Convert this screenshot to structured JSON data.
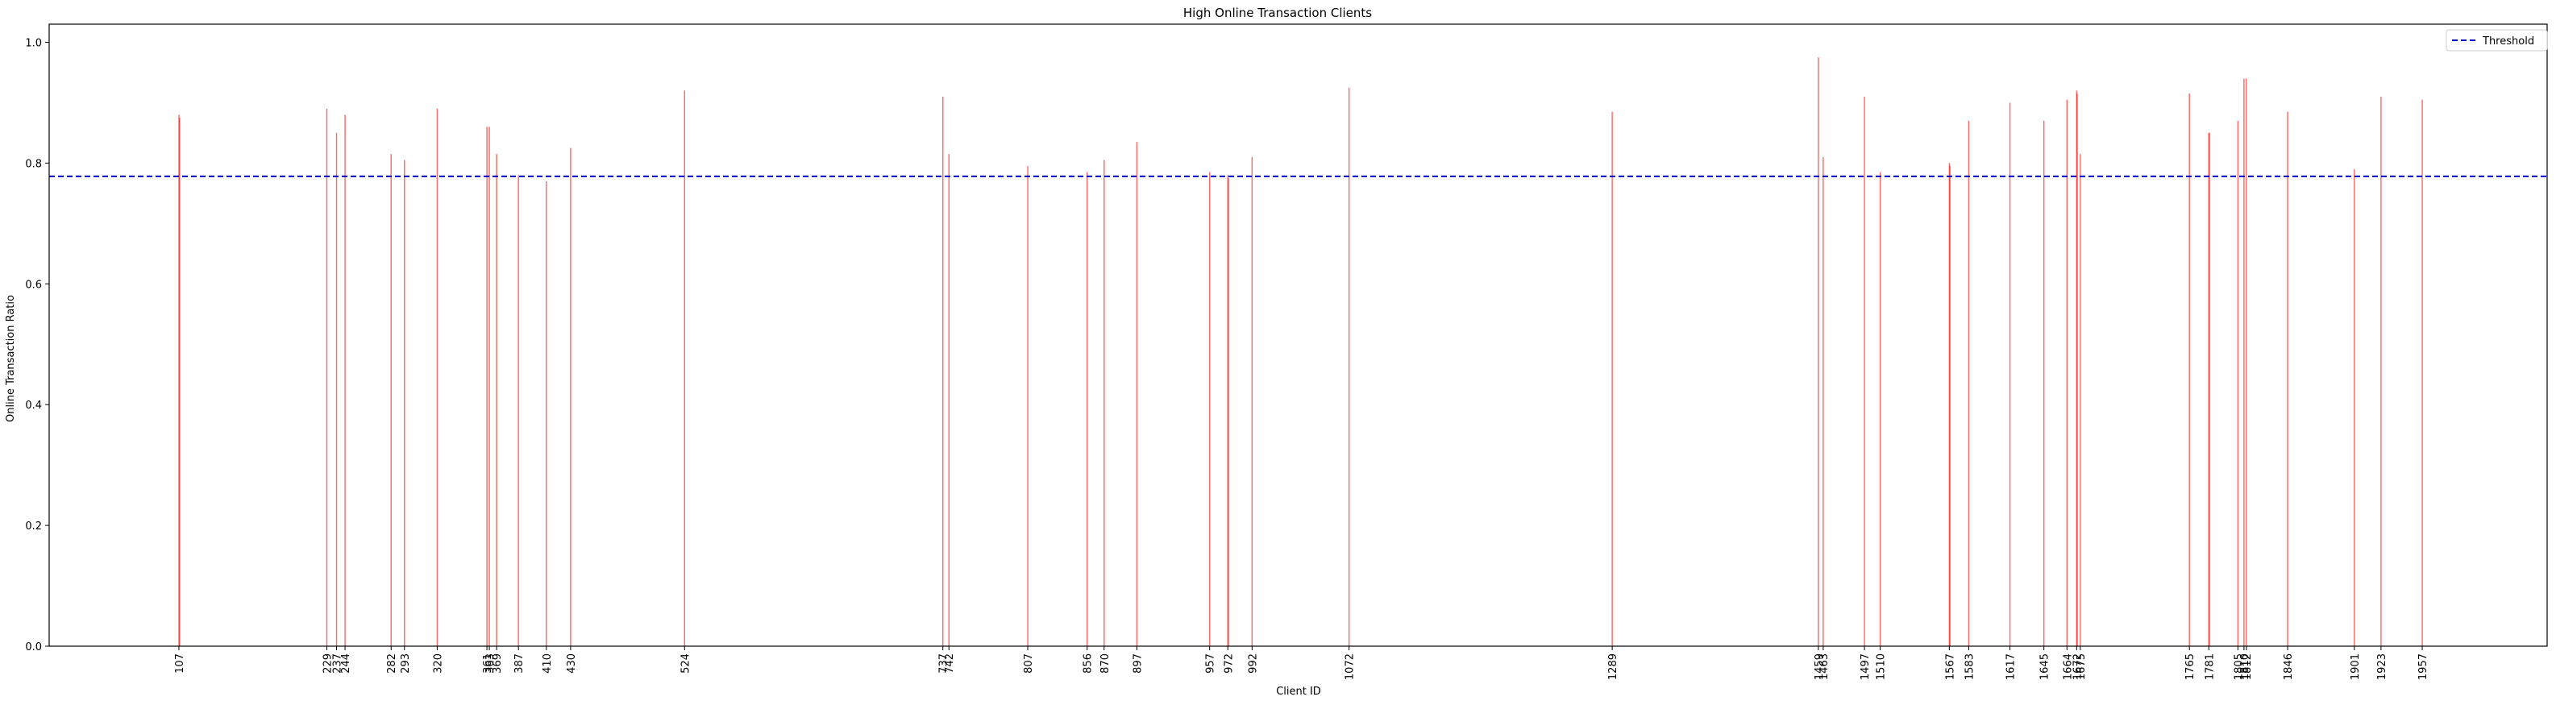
{
  "chart_data": {
    "type": "bar",
    "title": "High Online Transaction Clients",
    "xlabel": "Client ID",
    "ylabel": "Online Transaction Ratio",
    "xlim": [
      0,
      2060
    ],
    "ylim": [
      0,
      1.03
    ],
    "yticks": [
      0.0,
      0.2,
      0.4,
      0.6,
      0.8,
      1.0
    ],
    "ytick_labels": [
      "0.0",
      "0.2",
      "0.4",
      "0.6",
      "0.8",
      "1.0"
    ],
    "bar_color": "#ff0000",
    "threshold": {
      "name": "Threshold",
      "value": 0.778,
      "color": "#0000cc",
      "style": "dashed"
    },
    "legend_position": "top-right",
    "grid": false,
    "bars": [
      {
        "x": 107,
        "value": 0.88
      },
      {
        "x": 107.5,
        "value": 0.875
      },
      {
        "x": 229,
        "value": 0.89
      },
      {
        "x": 237,
        "value": 0.85
      },
      {
        "x": 244,
        "value": 0.88
      },
      {
        "x": 282,
        "value": 0.815
      },
      {
        "x": 293,
        "value": 0.805
      },
      {
        "x": 320,
        "value": 0.89
      },
      {
        "x": 361,
        "value": 0.86
      },
      {
        "x": 363,
        "value": 0.86
      },
      {
        "x": 369,
        "value": 0.815
      },
      {
        "x": 387,
        "value": 0.78
      },
      {
        "x": 410,
        "value": 0.77
      },
      {
        "x": 430,
        "value": 0.825
      },
      {
        "x": 524,
        "value": 0.92
      },
      {
        "x": 737,
        "value": 0.91
      },
      {
        "x": 742,
        "value": 0.815
      },
      {
        "x": 807,
        "value": 0.795
      },
      {
        "x": 856,
        "value": 0.785
      },
      {
        "x": 870,
        "value": 0.805
      },
      {
        "x": 897,
        "value": 0.835
      },
      {
        "x": 957,
        "value": 0.785
      },
      {
        "x": 972,
        "value": 0.78
      },
      {
        "x": 972.5,
        "value": 0.775
      },
      {
        "x": 992,
        "value": 0.81
      },
      {
        "x": 1072,
        "value": 0.925
      },
      {
        "x": 1289,
        "value": 0.885
      },
      {
        "x": 1459,
        "value": 0.975
      },
      {
        "x": 1463,
        "value": 0.81
      },
      {
        "x": 1497,
        "value": 0.91
      },
      {
        "x": 1510,
        "value": 0.785
      },
      {
        "x": 1567,
        "value": 0.8
      },
      {
        "x": 1567.5,
        "value": 0.795
      },
      {
        "x": 1583,
        "value": 0.87
      },
      {
        "x": 1617,
        "value": 0.9
      },
      {
        "x": 1645,
        "value": 0.87
      },
      {
        "x": 1664,
        "value": 0.905
      },
      {
        "x": 1672,
        "value": 0.92
      },
      {
        "x": 1672.5,
        "value": 0.915
      },
      {
        "x": 1675,
        "value": 0.815
      },
      {
        "x": 1765,
        "value": 0.915
      },
      {
        "x": 1781,
        "value": 0.85
      },
      {
        "x": 1781.5,
        "value": 0.85
      },
      {
        "x": 1805,
        "value": 0.87
      },
      {
        "x": 1810,
        "value": 0.94
      },
      {
        "x": 1812,
        "value": 0.94
      },
      {
        "x": 1846,
        "value": 0.885
      },
      {
        "x": 1901,
        "value": 0.79
      },
      {
        "x": 1923,
        "value": 0.91
      },
      {
        "x": 1957,
        "value": 0.905
      }
    ],
    "xticks": [
      107,
      229,
      237,
      244,
      282,
      293,
      320,
      361,
      363,
      369,
      387,
      410,
      430,
      524,
      737,
      742,
      807,
      856,
      870,
      897,
      957,
      972,
      992,
      1072,
      1289,
      1459,
      1463,
      1497,
      1510,
      1567,
      1583,
      1617,
      1645,
      1664,
      1672,
      1675,
      1765,
      1781,
      1805,
      1810,
      1812,
      1846,
      1901,
      1923,
      1957
    ]
  }
}
